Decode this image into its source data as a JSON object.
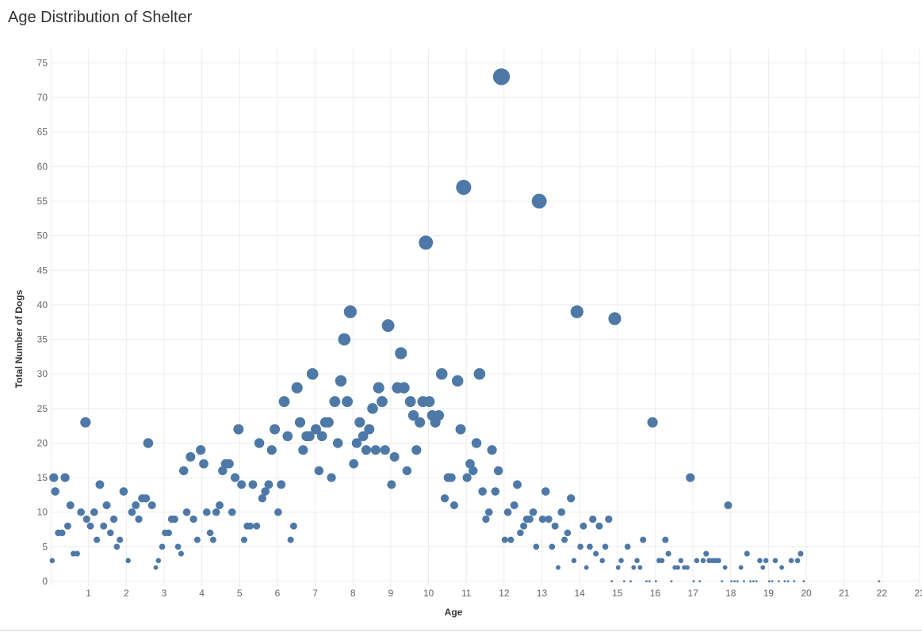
{
  "title": "Age Distribution of Shelter",
  "chart_data": {
    "type": "scatter",
    "title": "Age Distribution of Shelter",
    "xlabel": "Age",
    "ylabel": "Total Number of Dogs",
    "xlim": [
      0,
      23
    ],
    "ylim": [
      0,
      77
    ],
    "x_ticks": [
      1,
      2,
      3,
      4,
      5,
      6,
      7,
      8,
      9,
      10,
      11,
      12,
      13,
      14,
      15,
      16,
      17,
      18,
      19,
      20,
      21,
      22,
      23
    ],
    "y_ticks": [
      0,
      5,
      10,
      15,
      20,
      25,
      30,
      35,
      40,
      45,
      50,
      55,
      60,
      65,
      70,
      75
    ],
    "grid": true,
    "marker_color": "#4E79A7",
    "size_encodes": "y",
    "points": [
      [
        0.04,
        3
      ],
      [
        0.08,
        15
      ],
      [
        0.12,
        13
      ],
      [
        0.2,
        7
      ],
      [
        0.3,
        7
      ],
      [
        0.38,
        15
      ],
      [
        0.45,
        8
      ],
      [
        0.52,
        11
      ],
      [
        0.6,
        4
      ],
      [
        0.7,
        4
      ],
      [
        0.8,
        10
      ],
      [
        0.92,
        23
      ],
      [
        0.95,
        9
      ],
      [
        1.05,
        8
      ],
      [
        1.15,
        10
      ],
      [
        1.22,
        6
      ],
      [
        1.3,
        14
      ],
      [
        1.4,
        8
      ],
      [
        1.48,
        11
      ],
      [
        1.58,
        7
      ],
      [
        1.67,
        9
      ],
      [
        1.75,
        5
      ],
      [
        1.83,
        6
      ],
      [
        1.93,
        13
      ],
      [
        2.05,
        3
      ],
      [
        2.15,
        10
      ],
      [
        2.25,
        11
      ],
      [
        2.33,
        9
      ],
      [
        2.42,
        12
      ],
      [
        2.52,
        12
      ],
      [
        2.58,
        20
      ],
      [
        2.68,
        11
      ],
      [
        2.78,
        2
      ],
      [
        2.85,
        3
      ],
      [
        2.95,
        5
      ],
      [
        3.03,
        7
      ],
      [
        3.12,
        7
      ],
      [
        3.2,
        9
      ],
      [
        3.28,
        9
      ],
      [
        3.37,
        5
      ],
      [
        3.45,
        4
      ],
      [
        3.52,
        16
      ],
      [
        3.6,
        10
      ],
      [
        3.7,
        18
      ],
      [
        3.78,
        9
      ],
      [
        3.88,
        6
      ],
      [
        3.97,
        19
      ],
      [
        4.05,
        17
      ],
      [
        4.13,
        10
      ],
      [
        4.22,
        7
      ],
      [
        4.3,
        6
      ],
      [
        4.38,
        10
      ],
      [
        4.47,
        11
      ],
      [
        4.55,
        16
      ],
      [
        4.63,
        17
      ],
      [
        4.72,
        17
      ],
      [
        4.8,
        10
      ],
      [
        4.88,
        15
      ],
      [
        4.97,
        22
      ],
      [
        5.05,
        14
      ],
      [
        5.12,
        6
      ],
      [
        5.2,
        8
      ],
      [
        5.28,
        8
      ],
      [
        5.35,
        14
      ],
      [
        5.45,
        8
      ],
      [
        5.52,
        20
      ],
      [
        5.6,
        12
      ],
      [
        5.68,
        13
      ],
      [
        5.77,
        14
      ],
      [
        5.85,
        19
      ],
      [
        5.93,
        22
      ],
      [
        6.02,
        10
      ],
      [
        6.1,
        14
      ],
      [
        6.18,
        26
      ],
      [
        6.27,
        21
      ],
      [
        6.35,
        6
      ],
      [
        6.43,
        8
      ],
      [
        6.52,
        28
      ],
      [
        6.6,
        23
      ],
      [
        6.68,
        19
      ],
      [
        6.77,
        21
      ],
      [
        6.85,
        21
      ],
      [
        6.93,
        30
      ],
      [
        7.02,
        22
      ],
      [
        7.1,
        16
      ],
      [
        7.18,
        21
      ],
      [
        7.27,
        23
      ],
      [
        7.35,
        23
      ],
      [
        7.43,
        15
      ],
      [
        7.52,
        26
      ],
      [
        7.6,
        20
      ],
      [
        7.68,
        29
      ],
      [
        7.77,
        35
      ],
      [
        7.85,
        26
      ],
      [
        7.93,
        39
      ],
      [
        8.02,
        17
      ],
      [
        8.1,
        20
      ],
      [
        8.18,
        23
      ],
      [
        8.27,
        21
      ],
      [
        8.35,
        19
      ],
      [
        8.43,
        22
      ],
      [
        8.52,
        25
      ],
      [
        8.6,
        19
      ],
      [
        8.68,
        28
      ],
      [
        8.77,
        26
      ],
      [
        8.85,
        19
      ],
      [
        8.93,
        37
      ],
      [
        9.02,
        14
      ],
      [
        9.1,
        18
      ],
      [
        9.18,
        28
      ],
      [
        9.27,
        33
      ],
      [
        9.35,
        28
      ],
      [
        9.43,
        16
      ],
      [
        9.52,
        26
      ],
      [
        9.6,
        24
      ],
      [
        9.68,
        19
      ],
      [
        9.77,
        23
      ],
      [
        9.85,
        26
      ],
      [
        9.93,
        49
      ],
      [
        10.02,
        26
      ],
      [
        10.1,
        24
      ],
      [
        10.18,
        23
      ],
      [
        10.27,
        24
      ],
      [
        10.35,
        30
      ],
      [
        10.43,
        12
      ],
      [
        10.52,
        15
      ],
      [
        10.6,
        15
      ],
      [
        10.68,
        11
      ],
      [
        10.77,
        29
      ],
      [
        10.85,
        22
      ],
      [
        10.93,
        57
      ],
      [
        11.02,
        15
      ],
      [
        11.1,
        17
      ],
      [
        11.18,
        16
      ],
      [
        11.27,
        20
      ],
      [
        11.35,
        30
      ],
      [
        11.43,
        13
      ],
      [
        11.52,
        9
      ],
      [
        11.6,
        10
      ],
      [
        11.68,
        19
      ],
      [
        11.77,
        13
      ],
      [
        11.85,
        16
      ],
      [
        11.93,
        73
      ],
      [
        12.02,
        6
      ],
      [
        12.1,
        10
      ],
      [
        12.18,
        6
      ],
      [
        12.27,
        11
      ],
      [
        12.35,
        14
      ],
      [
        12.43,
        7
      ],
      [
        12.52,
        8
      ],
      [
        12.6,
        9
      ],
      [
        12.68,
        9
      ],
      [
        12.77,
        10
      ],
      [
        12.85,
        5
      ],
      [
        12.93,
        55
      ],
      [
        13.02,
        9
      ],
      [
        13.1,
        13
      ],
      [
        13.18,
        9
      ],
      [
        13.27,
        5
      ],
      [
        13.35,
        8
      ],
      [
        13.43,
        2
      ],
      [
        13.52,
        10
      ],
      [
        13.6,
        6
      ],
      [
        13.68,
        7
      ],
      [
        13.77,
        12
      ],
      [
        13.85,
        3
      ],
      [
        13.93,
        39
      ],
      [
        14.02,
        5
      ],
      [
        14.1,
        8
      ],
      [
        14.18,
        2
      ],
      [
        14.27,
        5
      ],
      [
        14.35,
        9
      ],
      [
        14.43,
        4
      ],
      [
        14.52,
        8
      ],
      [
        14.6,
        3
      ],
      [
        14.68,
        5
      ],
      [
        14.77,
        9
      ],
      [
        14.85,
        0
      ],
      [
        14.93,
        38
      ],
      [
        15.02,
        2
      ],
      [
        15.1,
        3
      ],
      [
        15.18,
        0
      ],
      [
        15.27,
        5
      ],
      [
        15.35,
        0
      ],
      [
        15.43,
        2
      ],
      [
        15.52,
        3
      ],
      [
        15.6,
        2
      ],
      [
        15.68,
        6
      ],
      [
        15.77,
        0
      ],
      [
        15.85,
        0
      ],
      [
        15.93,
        23
      ],
      [
        16.02,
        0
      ],
      [
        16.1,
        3
      ],
      [
        16.18,
        3
      ],
      [
        16.27,
        6
      ],
      [
        16.35,
        4
      ],
      [
        16.43,
        0
      ],
      [
        16.52,
        2
      ],
      [
        16.6,
        2
      ],
      [
        16.68,
        3
      ],
      [
        16.77,
        2
      ],
      [
        16.85,
        2
      ],
      [
        16.93,
        15
      ],
      [
        17.02,
        0
      ],
      [
        17.1,
        3
      ],
      [
        17.18,
        0
      ],
      [
        17.27,
        3
      ],
      [
        17.35,
        4
      ],
      [
        17.43,
        3
      ],
      [
        17.52,
        3
      ],
      [
        17.6,
        3
      ],
      [
        17.68,
        3
      ],
      [
        17.77,
        0
      ],
      [
        17.85,
        2
      ],
      [
        17.93,
        11
      ],
      [
        18.02,
        0
      ],
      [
        18.1,
        0
      ],
      [
        18.18,
        0
      ],
      [
        18.27,
        2
      ],
      [
        18.35,
        0
      ],
      [
        18.43,
        4
      ],
      [
        18.52,
        0
      ],
      [
        18.6,
        0
      ],
      [
        18.68,
        0
      ],
      [
        18.77,
        3
      ],
      [
        18.85,
        2
      ],
      [
        18.93,
        3
      ],
      [
        19.02,
        0
      ],
      [
        19.1,
        0
      ],
      [
        19.18,
        3
      ],
      [
        19.27,
        0
      ],
      [
        19.35,
        2
      ],
      [
        19.43,
        0
      ],
      [
        19.52,
        0
      ],
      [
        19.6,
        3
      ],
      [
        19.68,
        0
      ],
      [
        19.77,
        3
      ],
      [
        19.85,
        4
      ],
      [
        19.93,
        0
      ],
      [
        21.93,
        0
      ]
    ]
  }
}
